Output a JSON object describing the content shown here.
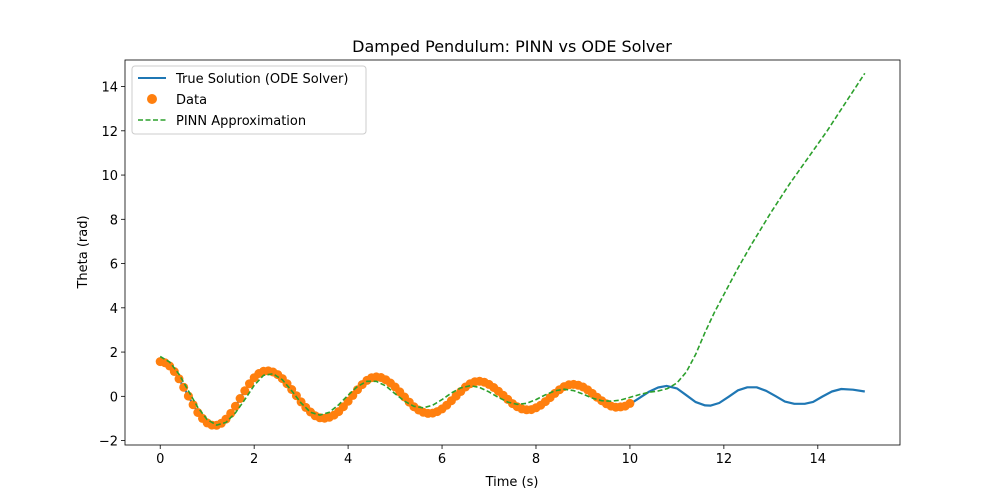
{
  "chart_data": {
    "type": "line",
    "title": "Damped Pendulum: PINN vs ODE Solver",
    "xlabel": "Time (s)",
    "ylabel": "Theta (rad)",
    "xlim": [
      -0.75,
      15.75
    ],
    "ylim": [
      -2.2,
      15.2
    ],
    "xticks": [
      0,
      2,
      4,
      6,
      8,
      10,
      12,
      14
    ],
    "yticks": [
      -2,
      0,
      2,
      4,
      6,
      8,
      10,
      12,
      14
    ],
    "ytick_labels": [
      "−2",
      "0",
      "2",
      "4",
      "6",
      "8",
      "10",
      "12",
      "14"
    ],
    "grid": false,
    "legend_position": "upper-left",
    "series": [
      {
        "name": "True Solution (ODE Solver)",
        "kind": "line",
        "style": "solid",
        "color": "#1f77b4",
        "x": [
          0,
          0.1,
          0.2,
          0.3,
          0.4,
          0.5,
          0.6,
          0.7,
          0.8,
          0.9,
          1.0,
          1.1,
          1.15,
          1.2,
          1.3,
          1.4,
          1.5,
          1.6,
          1.7,
          1.8,
          1.9,
          2.0,
          2.1,
          2.2,
          2.28,
          2.35,
          2.45,
          2.55,
          2.65,
          2.75,
          2.85,
          2.95,
          3.05,
          3.15,
          3.25,
          3.35,
          3.42,
          3.5,
          3.6,
          3.7,
          3.8,
          3.9,
          4.0,
          4.1,
          4.2,
          4.3,
          4.4,
          4.47,
          4.55,
          4.65,
          4.75,
          4.85,
          4.95,
          5.05,
          5.15,
          5.25,
          5.35,
          5.45,
          5.52,
          5.6,
          5.7,
          5.8,
          5.9,
          6.0,
          6.1,
          6.2,
          6.3,
          6.4,
          6.5,
          6.58,
          6.65,
          6.75,
          6.85,
          6.95,
          7.05,
          7.15,
          7.25,
          7.35,
          7.45,
          7.55,
          7.63,
          7.7,
          7.8,
          7.9,
          8.0,
          8.1,
          8.2,
          8.3,
          8.4,
          8.5,
          8.6,
          8.68,
          8.75,
          8.85,
          8.95,
          9.05,
          9.15,
          9.25,
          9.35,
          9.45,
          9.55,
          9.65,
          9.73,
          9.8,
          9.9,
          10.0,
          10.2,
          10.4,
          10.6,
          10.78,
          11.0,
          11.2,
          11.4,
          11.6,
          11.72,
          11.9,
          12.1,
          12.3,
          12.5,
          12.7,
          12.9,
          13.1,
          13.3,
          13.5,
          13.72,
          13.9,
          14.1,
          14.3,
          14.5,
          14.75,
          15.0
        ],
        "y": [
          1.57,
          1.52,
          1.37,
          1.12,
          0.79,
          0.41,
          0.01,
          -0.38,
          -0.73,
          -1.0,
          -1.2,
          -1.3,
          -1.32,
          -1.31,
          -1.22,
          -1.03,
          -0.77,
          -0.45,
          -0.1,
          0.25,
          0.57,
          0.84,
          1.03,
          1.13,
          1.15,
          1.13,
          1.05,
          0.9,
          0.69,
          0.44,
          0.17,
          -0.11,
          -0.38,
          -0.62,
          -0.81,
          -0.94,
          -0.98,
          -0.99,
          -0.95,
          -0.85,
          -0.69,
          -0.47,
          -0.22,
          0.04,
          0.3,
          0.53,
          0.72,
          0.81,
          0.87,
          0.87,
          0.81,
          0.69,
          0.52,
          0.31,
          0.08,
          -0.15,
          -0.38,
          -0.57,
          -0.68,
          -0.73,
          -0.77,
          -0.76,
          -0.69,
          -0.57,
          -0.4,
          -0.2,
          0.01,
          0.22,
          0.42,
          0.56,
          0.64,
          0.68,
          0.66,
          0.58,
          0.45,
          0.28,
          0.09,
          -0.12,
          -0.3,
          -0.46,
          -0.56,
          -0.6,
          -0.61,
          -0.57,
          -0.48,
          -0.35,
          -0.18,
          0.01,
          0.19,
          0.36,
          0.47,
          0.53,
          0.54,
          0.52,
          0.45,
          0.34,
          0.2,
          0.04,
          -0.13,
          -0.28,
          -0.4,
          -0.47,
          -0.49,
          -0.48,
          -0.44,
          -0.35,
          -0.08,
          0.2,
          0.4,
          0.47,
          0.36,
          0.05,
          -0.26,
          -0.41,
          -0.42,
          -0.3,
          -0.02,
          0.27,
          0.41,
          0.41,
          0.25,
          0.01,
          -0.24,
          -0.34,
          -0.34,
          -0.25,
          -0.01,
          0.22,
          0.33,
          0.3,
          0.22
        ]
      },
      {
        "name": "Data",
        "kind": "scatter",
        "color": "#ff7f0e",
        "x": [
          0,
          0.1,
          0.2,
          0.3,
          0.4,
          0.5,
          0.6,
          0.7,
          0.8,
          0.9,
          1.0,
          1.1,
          1.2,
          1.3,
          1.4,
          1.5,
          1.6,
          1.7,
          1.8,
          1.9,
          2.0,
          2.1,
          2.2,
          2.3,
          2.4,
          2.5,
          2.6,
          2.7,
          2.8,
          2.9,
          3.0,
          3.1,
          3.2,
          3.3,
          3.4,
          3.5,
          3.6,
          3.7,
          3.8,
          3.9,
          4.0,
          4.1,
          4.2,
          4.3,
          4.4,
          4.5,
          4.6,
          4.7,
          4.8,
          4.9,
          5.0,
          5.1,
          5.2,
          5.3,
          5.4,
          5.5,
          5.6,
          5.7,
          5.8,
          5.9,
          6.0,
          6.1,
          6.2,
          6.3,
          6.4,
          6.5,
          6.6,
          6.7,
          6.8,
          6.9,
          7.0,
          7.1,
          7.2,
          7.3,
          7.4,
          7.5,
          7.6,
          7.7,
          7.8,
          7.9,
          8.0,
          8.1,
          8.2,
          8.3,
          8.4,
          8.5,
          8.6,
          8.7,
          8.8,
          8.9,
          9.0,
          9.1,
          9.2,
          9.3,
          9.4,
          9.5,
          9.6,
          9.7,
          9.8,
          9.9,
          10.0
        ],
        "y": [
          1.57,
          1.52,
          1.37,
          1.12,
          0.79,
          0.41,
          0.01,
          -0.38,
          -0.73,
          -1.0,
          -1.2,
          -1.3,
          -1.31,
          -1.22,
          -1.03,
          -0.77,
          -0.45,
          -0.1,
          0.25,
          0.57,
          0.84,
          1.03,
          1.13,
          1.15,
          1.1,
          0.98,
          0.8,
          0.57,
          0.31,
          0.03,
          -0.25,
          -0.5,
          -0.71,
          -0.88,
          -0.97,
          -0.99,
          -0.95,
          -0.85,
          -0.69,
          -0.47,
          -0.22,
          0.04,
          0.3,
          0.53,
          0.72,
          0.84,
          0.88,
          0.85,
          0.75,
          0.6,
          0.42,
          0.2,
          -0.03,
          -0.26,
          -0.47,
          -0.62,
          -0.72,
          -0.77,
          -0.76,
          -0.69,
          -0.57,
          -0.4,
          -0.2,
          0.01,
          0.22,
          0.42,
          0.57,
          0.66,
          0.68,
          0.64,
          0.54,
          0.4,
          0.23,
          0.05,
          -0.14,
          -0.33,
          -0.47,
          -0.57,
          -0.61,
          -0.6,
          -0.52,
          -0.4,
          -0.24,
          -0.06,
          0.13,
          0.3,
          0.44,
          0.52,
          0.54,
          0.5,
          0.42,
          0.29,
          0.13,
          -0.04,
          -0.2,
          -0.34,
          -0.44,
          -0.49,
          -0.48,
          -0.44,
          -0.32
        ]
      },
      {
        "name": "PINN Approximation",
        "kind": "line",
        "style": "dashed",
        "color": "#2ca02c",
        "x": [
          0,
          0.2,
          0.4,
          0.6,
          0.8,
          1.0,
          1.2,
          1.4,
          1.6,
          1.8,
          2.0,
          2.2,
          2.4,
          2.6,
          2.8,
          3.0,
          3.2,
          3.4,
          3.6,
          3.8,
          4.0,
          4.2,
          4.4,
          4.6,
          4.8,
          5.0,
          5.2,
          5.4,
          5.6,
          5.8,
          6.0,
          6.2,
          6.4,
          6.6,
          6.8,
          7.0,
          7.2,
          7.4,
          7.6,
          7.8,
          8.0,
          8.2,
          8.4,
          8.6,
          8.8,
          9.0,
          9.2,
          9.4,
          9.6,
          9.8,
          10.0,
          10.2,
          10.4,
          10.6,
          10.8,
          11.0,
          11.2,
          11.4,
          11.6,
          11.8,
          12.0,
          12.3,
          12.6,
          13.0,
          13.4,
          13.8,
          14.2,
          14.6,
          15.0
        ],
        "y": [
          1.8,
          1.55,
          1.0,
          0.25,
          -0.5,
          -1.05,
          -1.3,
          -1.18,
          -0.75,
          -0.15,
          0.5,
          0.95,
          1.02,
          0.75,
          0.25,
          -0.3,
          -0.72,
          -0.85,
          -0.72,
          -0.38,
          0.05,
          0.45,
          0.68,
          0.68,
          0.47,
          0.12,
          -0.22,
          -0.45,
          -0.52,
          -0.4,
          -0.15,
          0.15,
          0.38,
          0.48,
          0.4,
          0.2,
          -0.05,
          -0.26,
          -0.36,
          -0.32,
          -0.15,
          0.07,
          0.25,
          0.32,
          0.26,
          0.1,
          -0.08,
          -0.2,
          -0.22,
          -0.17,
          -0.05,
          0.08,
          0.18,
          0.24,
          0.35,
          0.6,
          1.1,
          1.9,
          2.9,
          3.8,
          4.6,
          5.8,
          6.9,
          8.3,
          9.6,
          10.8,
          12.0,
          13.3,
          14.6
        ]
      }
    ]
  }
}
